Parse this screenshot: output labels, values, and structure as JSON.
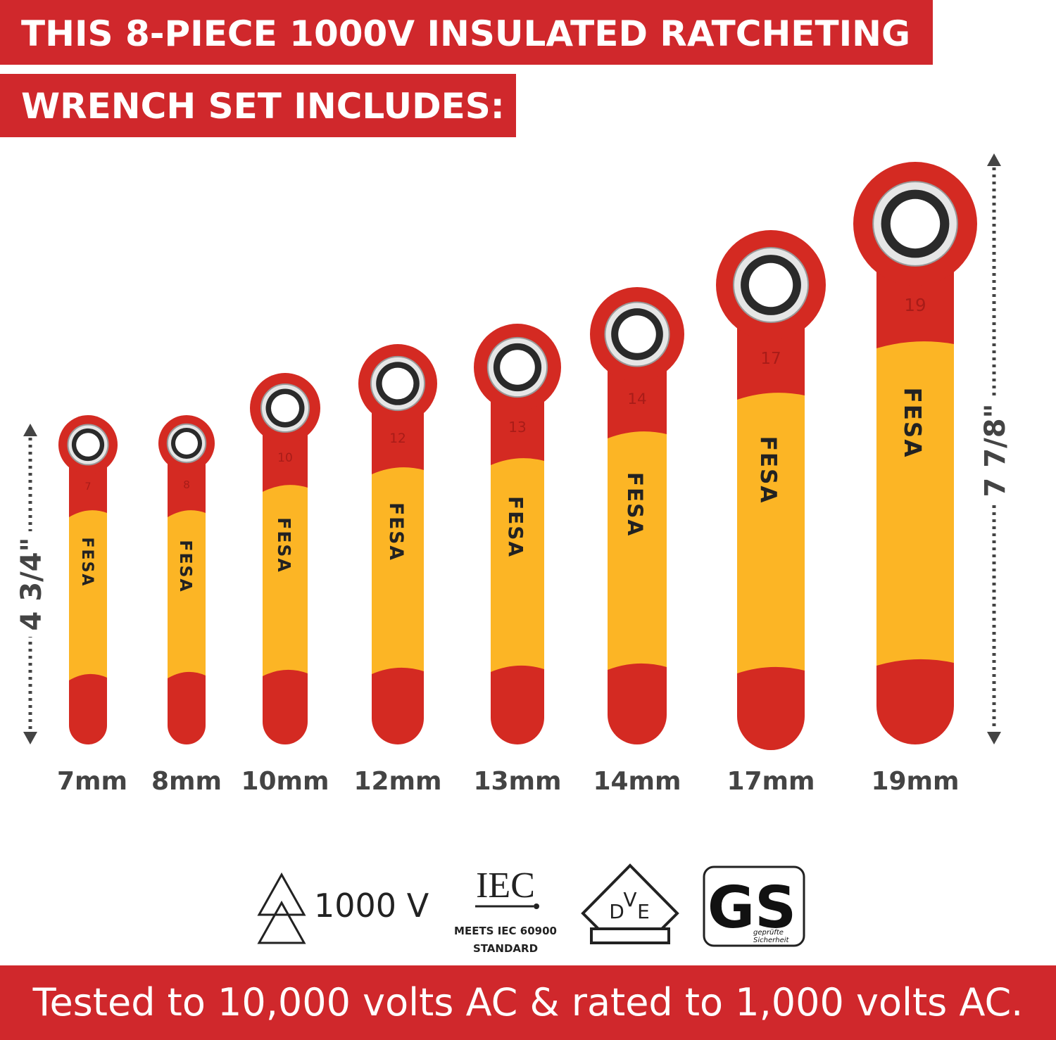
{
  "header": {
    "line1": "THIS 8-PIECE 1000V INSULATED RATCHETING",
    "line2": "WRENCH SET INCLUDES:"
  },
  "wrenches": [
    {
      "size": "7mm",
      "head_label": "7",
      "brand": "FESA"
    },
    {
      "size": "8mm",
      "head_label": "8",
      "brand": "FESA"
    },
    {
      "size": "10mm",
      "head_label": "10",
      "brand": "FESA"
    },
    {
      "size": "12mm",
      "head_label": "12",
      "brand": "FESA"
    },
    {
      "size": "13mm",
      "head_label": "13",
      "brand": "FESA"
    },
    {
      "size": "14mm",
      "head_label": "14",
      "brand": "FESA"
    },
    {
      "size": "17mm",
      "head_label": "17",
      "brand": "FESA"
    },
    {
      "size": "19mm",
      "head_label": "19",
      "brand": "FESA"
    }
  ],
  "dimensions": {
    "short": "4 3/4\"",
    "long": "7 7/8\""
  },
  "certifications": {
    "voltage": "1000 V",
    "iec": "IEC",
    "iec_caption": [
      "MEETS IEC 60900",
      "STANDARD"
    ],
    "vde": [
      "D",
      "V",
      "E"
    ],
    "gs": "GS",
    "gs_caption": [
      "geprüfte",
      "Sicherheit"
    ]
  },
  "footer": "Tested to 10,000 volts AC & rated to 1,000 volts AC."
}
